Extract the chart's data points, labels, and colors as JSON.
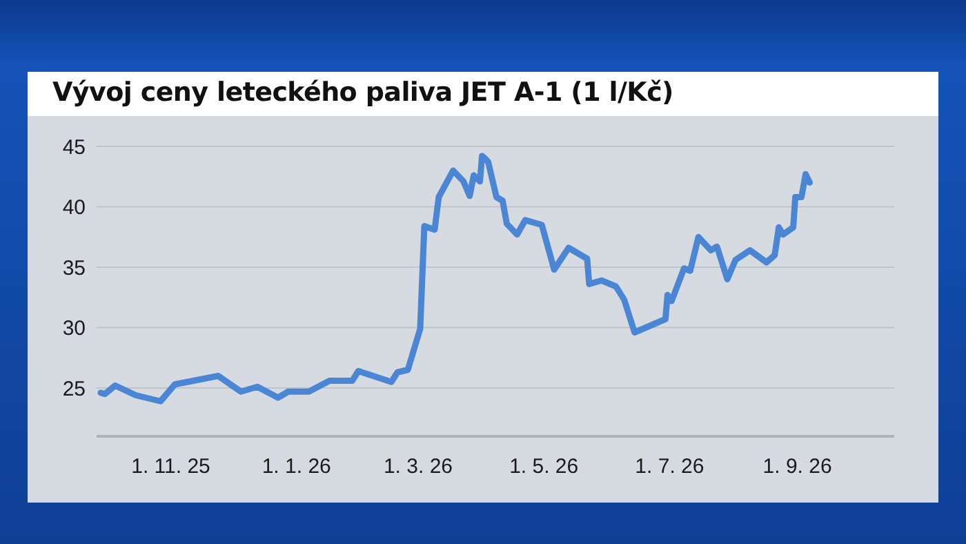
{
  "chart_data": {
    "type": "line",
    "title": "Vývoj ceny leteckého paliva JET A-1 (1 l/Kč)",
    "x": [
      "2025-09-28",
      "2025-09-30",
      "2025-10-05",
      "2025-10-15",
      "2025-10-27",
      "2025-11-03",
      "2025-11-24",
      "2025-12-05",
      "2025-12-13",
      "2025-12-23",
      "2025-12-28",
      "2026-01-07",
      "2026-01-17",
      "2026-01-28",
      "2026-01-31",
      "2026-02-16",
      "2026-02-19",
      "2026-02-24",
      "2026-03-02",
      "2026-03-04",
      "2026-03-09",
      "2026-03-11",
      "2026-03-18",
      "2026-03-23",
      "2026-03-26",
      "2026-03-28",
      "2026-03-31",
      "2026-04-01",
      "2026-04-03",
      "2026-04-04",
      "2026-04-08",
      "2026-04-11",
      "2026-04-13",
      "2026-04-18",
      "2026-04-22",
      "2026-04-30",
      "2026-05-06",
      "2026-05-13",
      "2026-05-22",
      "2026-05-23",
      "2026-05-29",
      "2026-06-05",
      "2026-06-09",
      "2026-06-14",
      "2026-06-29",
      "2026-06-30",
      "2026-07-02",
      "2026-07-08",
      "2026-07-11",
      "2026-07-15",
      "2026-07-21",
      "2026-07-24",
      "2026-07-29",
      "2026-08-02",
      "2026-08-09",
      "2026-08-17",
      "2026-08-21",
      "2026-08-23",
      "2026-08-25",
      "2026-08-30",
      "2026-08-31",
      "2026-09-03",
      "2026-09-05",
      "2026-09-07"
    ],
    "series": [
      {
        "color": "#4a86d4",
        "values": [
          24.6,
          24.5,
          25.2,
          24.4,
          23.9,
          25.3,
          26.0,
          24.7,
          25.1,
          24.2,
          24.7,
          24.7,
          25.6,
          25.6,
          26.4,
          25.5,
          26.3,
          26.5,
          29.9,
          38.4,
          38.1,
          40.8,
          43.0,
          42.1,
          40.9,
          42.6,
          42.1,
          44.2,
          43.9,
          43.7,
          40.8,
          40.5,
          38.6,
          37.7,
          38.9,
          38.5,
          34.8,
          36.6,
          35.7,
          33.6,
          33.9,
          33.4,
          32.3,
          29.6,
          30.7,
          32.7,
          32.2,
          34.9,
          34.7,
          37.5,
          36.4,
          36.7,
          34.0,
          35.6,
          36.4,
          35.4,
          36.0,
          38.3,
          37.7,
          38.3,
          40.8,
          40.8,
          42.7,
          42.0
        ]
      }
    ],
    "xlim": [
      "2025-09-26",
      "2026-10-18"
    ],
    "xticks": [
      {
        "value": "2025-11-01",
        "label": "1. 11. 25"
      },
      {
        "value": "2026-01-01",
        "label": "1. 1. 26"
      },
      {
        "value": "2026-03-01",
        "label": "1. 3. 26"
      },
      {
        "value": "2026-05-01",
        "label": "1. 5. 26"
      },
      {
        "value": "2026-07-01",
        "label": "1. 7. 26"
      },
      {
        "value": "2026-09-01",
        "label": "1. 9. 26"
      }
    ],
    "ylim": [
      21,
      45
    ],
    "yticks": [
      25,
      30,
      35,
      40,
      45
    ],
    "grid": "y",
    "marker": "none",
    "line_style": "solid"
  }
}
